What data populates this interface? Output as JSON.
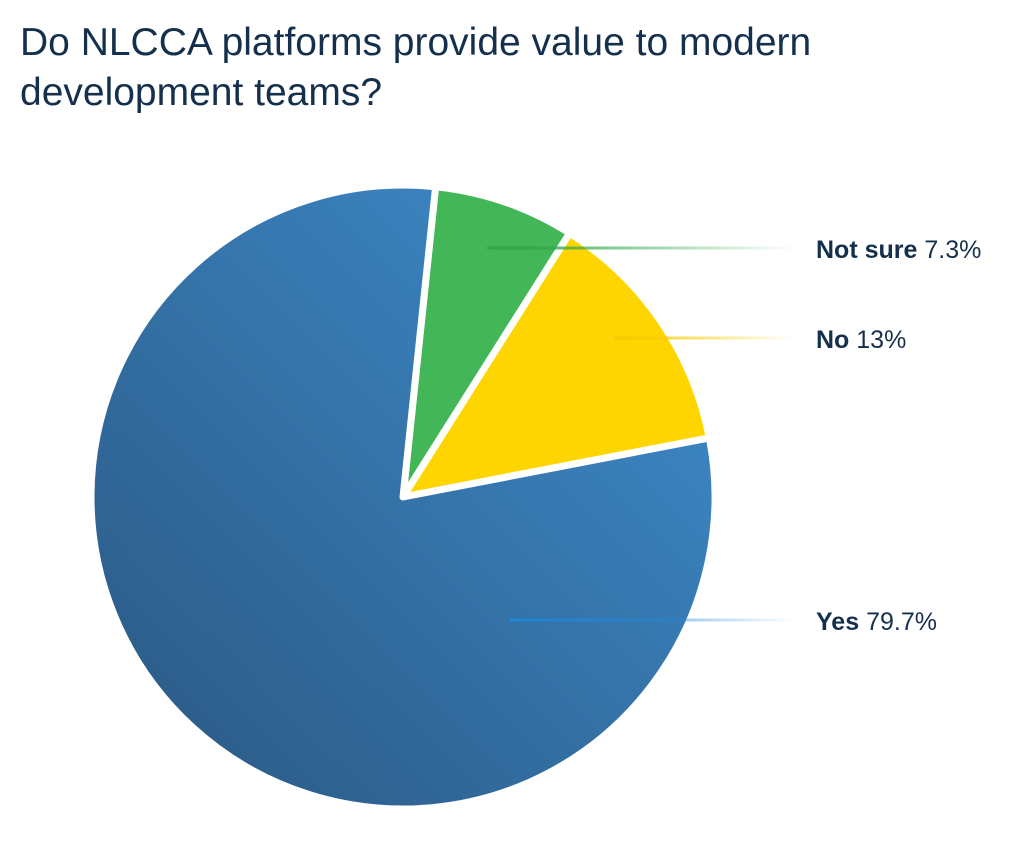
{
  "chart_data": {
    "type": "pie",
    "title": "Do NLCCA platforms provide value to modern development teams?",
    "slices": [
      {
        "label": "Not sure",
        "value": 7.3,
        "display": "7.3%",
        "color": "#43b757"
      },
      {
        "label": "No",
        "value": 13,
        "display": "13%",
        "color": "#ffd500"
      },
      {
        "label": "Yes",
        "value": 79.7,
        "display": "79.7%",
        "color": "#3a80bd"
      }
    ],
    "legend_placement": "right"
  }
}
